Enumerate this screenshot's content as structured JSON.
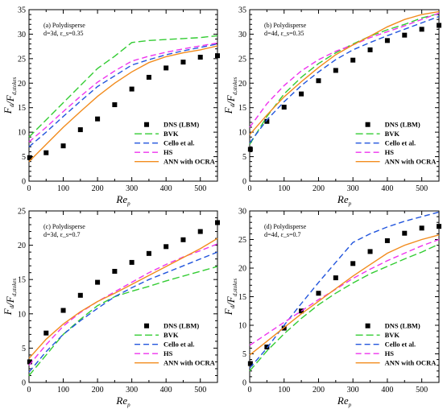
{
  "colors": {
    "BVK": "#33cc33",
    "Cello et al.": "#2255dd",
    "HS": "#ee33ee",
    "ANN with OCRA": "#f28c1e",
    "DNS (LBM)": "#000000"
  },
  "chart_data": [
    {
      "type": "line",
      "panel": "a",
      "annotation": [
        "(a) Polydisperse",
        "d=3d, ε_s=0.35"
      ],
      "xlabel": "Re_p",
      "ylabel": "F_d/F_d,stokes",
      "xlim": [
        0,
        550
      ],
      "ylim": [
        0,
        35
      ],
      "xticks": [
        0,
        100,
        200,
        300,
        400,
        500
      ],
      "yticks": [
        0,
        5,
        10,
        15,
        20,
        25,
        30,
        35
      ],
      "legend_position": "bottom-right",
      "series": [
        {
          "name": "DNS (LBM)",
          "kind": "marker",
          "x": [
            2,
            50,
            100,
            150,
            200,
            250,
            300,
            350,
            400,
            450,
            500,
            550
          ],
          "y": [
            4.8,
            5.8,
            7.2,
            10.5,
            12.7,
            15.6,
            18.8,
            21.2,
            23.1,
            24.3,
            25.3,
            25.6
          ]
        },
        {
          "name": "BVK",
          "kind": "line",
          "dash": "long",
          "x": [
            0,
            50,
            100,
            150,
            200,
            250,
            300,
            350,
            400,
            450,
            500,
            550
          ],
          "y": [
            9.0,
            12.5,
            16.0,
            19.5,
            23.0,
            25.5,
            28.3,
            28.7,
            28.9,
            29.1,
            29.3,
            29.7
          ]
        },
        {
          "name": "Cello et al.",
          "kind": "line",
          "dash": "medium",
          "x": [
            0,
            50,
            100,
            150,
            200,
            250,
            300,
            350,
            400,
            450,
            500,
            550
          ],
          "y": [
            7.0,
            10.0,
            13.2,
            16.3,
            19.3,
            21.5,
            23.7,
            24.8,
            25.8,
            26.6,
            27.3,
            28.0
          ]
        },
        {
          "name": "HS",
          "kind": "line",
          "dash": "medium",
          "x": [
            0,
            50,
            100,
            150,
            200,
            250,
            300,
            350,
            400,
            450,
            500,
            550
          ],
          "y": [
            8.0,
            11.0,
            14.2,
            17.3,
            20.2,
            22.5,
            24.5,
            25.5,
            26.3,
            27.0,
            27.6,
            28.2
          ]
        },
        {
          "name": "ANN with OCRA",
          "kind": "line",
          "dash": "solid",
          "x": [
            0,
            50,
            100,
            150,
            200,
            250,
            300,
            350,
            400,
            450,
            500,
            550
          ],
          "y": [
            4.0,
            7.5,
            11.0,
            14.2,
            17.3,
            20.0,
            22.3,
            24.2,
            25.4,
            26.2,
            26.8,
            27.6
          ]
        }
      ]
    },
    {
      "type": "line",
      "panel": "b",
      "annotation": [
        "(b) Polydisperse",
        "d=4d, ε_s=0.35"
      ],
      "xlabel": "Re_p",
      "ylabel": "F_d/F_d,stokes",
      "xlim": [
        0,
        550
      ],
      "ylim": [
        0,
        35
      ],
      "xticks": [
        0,
        100,
        200,
        300,
        400,
        500
      ],
      "yticks": [
        0,
        5,
        10,
        15,
        20,
        25,
        30,
        35
      ],
      "legend_position": "bottom-right",
      "series": [
        {
          "name": "DNS (LBM)",
          "kind": "marker",
          "x": [
            2,
            50,
            100,
            150,
            200,
            250,
            300,
            350,
            400,
            450,
            500,
            550
          ],
          "y": [
            6.5,
            12.2,
            15.1,
            17.8,
            20.5,
            22.6,
            24.7,
            26.8,
            28.7,
            29.8,
            31.0,
            31.8
          ]
        },
        {
          "name": "BVK",
          "kind": "line",
          "dash": "long",
          "x": [
            0,
            50,
            100,
            150,
            200,
            250,
            300,
            350,
            400,
            450,
            500,
            550
          ],
          "y": [
            7.5,
            13.2,
            17.8,
            21.2,
            24.0,
            26.2,
            28.0,
            29.6,
            30.9,
            32.0,
            33.3,
            34.2
          ]
        },
        {
          "name": "Cello et al.",
          "kind": "line",
          "dash": "medium",
          "x": [
            0,
            50,
            100,
            150,
            200,
            250,
            300,
            350,
            400,
            450,
            500,
            550
          ],
          "y": [
            7.8,
            12.5,
            16.2,
            19.5,
            22.3,
            24.8,
            26.8,
            28.3,
            29.7,
            31.0,
            32.3,
            33.6
          ]
        },
        {
          "name": "HS",
          "kind": "line",
          "dash": "medium",
          "x": [
            0,
            50,
            100,
            150,
            200,
            250,
            300,
            350,
            400,
            450,
            500,
            550
          ],
          "y": [
            11.0,
            15.8,
            19.5,
            22.5,
            24.8,
            26.5,
            27.8,
            29.3,
            30.5,
            31.7,
            33.0,
            34.3
          ]
        },
        {
          "name": "ANN with OCRA",
          "kind": "line",
          "dash": "solid",
          "x": [
            0,
            50,
            100,
            150,
            200,
            250,
            300,
            350,
            400,
            450,
            500,
            550
          ],
          "y": [
            9.5,
            13.5,
            17.2,
            20.3,
            23.2,
            25.8,
            27.8,
            29.6,
            31.5,
            33.0,
            34.0,
            34.6
          ]
        }
      ]
    },
    {
      "type": "line",
      "panel": "c",
      "annotation": [
        "(c) Polydisperse",
        "d=3d, ε_s=0.7"
      ],
      "xlabel": "Re_p",
      "ylabel": "F_d/F_d,stokes",
      "xlim": [
        0,
        550
      ],
      "ylim": [
        0,
        25
      ],
      "xticks": [
        0,
        100,
        200,
        300,
        400,
        500
      ],
      "yticks": [
        0,
        5,
        10,
        15,
        20,
        25
      ],
      "legend_position": "bottom-right",
      "series": [
        {
          "name": "DNS (LBM)",
          "kind": "marker",
          "x": [
            2,
            50,
            100,
            150,
            200,
            250,
            300,
            350,
            400,
            450,
            500,
            550
          ],
          "y": [
            3.0,
            7.2,
            10.5,
            12.7,
            14.6,
            16.2,
            17.5,
            18.8,
            19.8,
            20.8,
            22.0,
            23.3
          ]
        },
        {
          "name": "BVK",
          "kind": "line",
          "dash": "long",
          "x": [
            0,
            50,
            100,
            150,
            200,
            250,
            300,
            350,
            400,
            450,
            500,
            550
          ],
          "y": [
            1.0,
            4.0,
            7.0,
            9.2,
            11.2,
            12.5,
            13.3,
            14.0,
            14.8,
            15.5,
            16.2,
            16.9
          ]
        },
        {
          "name": "Cello et al.",
          "kind": "line",
          "dash": "medium",
          "x": [
            0,
            50,
            100,
            150,
            200,
            250,
            300,
            350,
            400,
            450,
            500,
            550
          ],
          "y": [
            1.5,
            4.5,
            7.0,
            9.0,
            10.8,
            12.5,
            13.8,
            15.0,
            16.0,
            17.0,
            18.0,
            19.0
          ]
        },
        {
          "name": "HS",
          "kind": "line",
          "dash": "medium",
          "x": [
            0,
            50,
            100,
            150,
            200,
            250,
            300,
            350,
            400,
            450,
            500,
            550
          ],
          "y": [
            2.5,
            5.5,
            8.2,
            10.2,
            11.8,
            13.2,
            14.6,
            16.0,
            17.2,
            18.3,
            19.2,
            20.2
          ]
        },
        {
          "name": "ANN with OCRA",
          "kind": "line",
          "dash": "solid",
          "x": [
            0,
            50,
            100,
            150,
            200,
            250,
            300,
            350,
            400,
            450,
            500,
            550
          ],
          "y": [
            3.5,
            6.3,
            8.5,
            10.3,
            11.8,
            13.0,
            14.3,
            15.6,
            16.9,
            18.2,
            19.5,
            21.0
          ]
        }
      ]
    },
    {
      "type": "line",
      "panel": "d",
      "annotation": [
        "(d) Polydisperse",
        "d=4d, ε_s=0.7"
      ],
      "xlabel": "Re_p",
      "ylabel": "F_d/F_d,stokes",
      "xlim": [
        0,
        550
      ],
      "ylim": [
        0,
        30
      ],
      "xticks": [
        0,
        100,
        200,
        300,
        400,
        500
      ],
      "yticks": [
        0,
        5,
        10,
        15,
        20,
        25,
        30
      ],
      "legend_position": "bottom-right",
      "series": [
        {
          "name": "DNS (LBM)",
          "kind": "marker",
          "x": [
            2,
            50,
            100,
            150,
            200,
            250,
            300,
            350,
            400,
            450,
            500,
            550
          ],
          "y": [
            3.3,
            6.2,
            9.5,
            12.5,
            15.6,
            18.3,
            20.8,
            22.9,
            24.8,
            26.1,
            27.0,
            27.3
          ]
        },
        {
          "name": "BVK",
          "kind": "line",
          "dash": "long",
          "x": [
            0,
            50,
            100,
            150,
            200,
            250,
            300,
            350,
            400,
            450,
            500,
            550
          ],
          "y": [
            2.0,
            5.5,
            8.5,
            11.2,
            13.6,
            15.6,
            17.4,
            19.0,
            20.3,
            21.6,
            22.8,
            24.2
          ]
        },
        {
          "name": "Cello et al.",
          "kind": "line",
          "dash": "medium",
          "x": [
            0,
            50,
            100,
            150,
            200,
            250,
            300,
            350,
            400,
            450,
            500,
            550
          ],
          "y": [
            2.5,
            6.0,
            10.0,
            13.8,
            17.5,
            21.0,
            24.5,
            26.0,
            27.2,
            28.2,
            29.0,
            29.8
          ]
        },
        {
          "name": "HS",
          "kind": "line",
          "dash": "medium",
          "x": [
            0,
            50,
            100,
            150,
            200,
            250,
            300,
            350,
            400,
            450,
            500,
            550
          ],
          "y": [
            6.5,
            8.5,
            10.5,
            12.5,
            14.5,
            16.3,
            18.2,
            19.8,
            21.3,
            22.6,
            23.9,
            25.0
          ]
        },
        {
          "name": "ANN with OCRA",
          "kind": "line",
          "dash": "solid",
          "x": [
            0,
            50,
            100,
            150,
            200,
            250,
            300,
            350,
            400,
            450,
            500,
            550
          ],
          "y": [
            4.8,
            7.2,
            9.6,
            12.0,
            14.2,
            16.4,
            18.6,
            20.6,
            22.6,
            24.0,
            25.0,
            25.8
          ]
        }
      ]
    }
  ]
}
